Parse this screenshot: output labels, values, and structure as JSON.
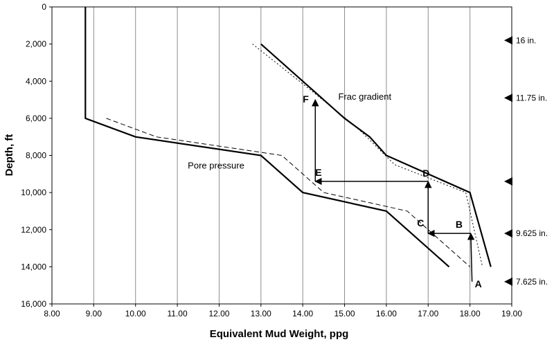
{
  "chart_data": {
    "type": "line",
    "xlabel": "Equivalent Mud Weight, ppg",
    "ylabel": "Depth, ft",
    "xlim": [
      8.0,
      19.0
    ],
    "ylim": [
      0,
      16000
    ],
    "y_inverted": true,
    "grid": "vertical",
    "x_ticks": [
      "8.00",
      "9.00",
      "10.00",
      "11.00",
      "12.00",
      "13.00",
      "14.00",
      "15.00",
      "16.00",
      "17.00",
      "18.00",
      "19.00"
    ],
    "y_ticks": [
      "0",
      "2,000",
      "4,000",
      "6,000",
      "8,000",
      "10,000",
      "12,000",
      "14,000",
      "16,000"
    ],
    "series": [
      {
        "name": "Pore pressure",
        "style": "solid",
        "x": [
          8.8,
          8.8,
          10.0,
          13.0,
          14.0,
          16.0,
          17.5
        ],
        "y": [
          0,
          6000,
          7000,
          8000,
          10000,
          11000,
          14000
        ]
      },
      {
        "name": "Frac gradient",
        "style": "solid",
        "x": [
          13.0,
          14.0,
          15.0,
          15.6,
          16.0,
          18.0,
          18.5
        ],
        "y": [
          2000,
          4000,
          6000,
          7000,
          8000,
          10000,
          14000
        ]
      },
      {
        "name": "",
        "style": "dashed",
        "x": [
          9.3,
          10.5,
          13.5,
          14.5,
          16.5,
          18.0
        ],
        "y": [
          6000,
          7000,
          8000,
          10000,
          11000,
          14000
        ]
      },
      {
        "name": "",
        "style": "dotted",
        "x": [
          12.8,
          14.2,
          15.3,
          16.2,
          17.9,
          18.3
        ],
        "y": [
          2000,
          4500,
          6500,
          8500,
          10000,
          14000
        ]
      }
    ],
    "annotations": [
      {
        "text": "Frac gradient",
        "x": 14.85,
        "y": 5000
      },
      {
        "text": "Pore pressure",
        "x": 11.25,
        "y": 8700
      }
    ],
    "design_points": [
      {
        "label": "A",
        "x": 18.05,
        "y": 14800
      },
      {
        "label": "B",
        "x": 18.02,
        "y": 12200
      },
      {
        "label": "C",
        "x": 17.0,
        "y": 12200
      },
      {
        "label": "D",
        "x": 17.0,
        "y": 9400
      },
      {
        "label": "E",
        "x": 14.3,
        "y": 9400
      },
      {
        "label": "F",
        "x": 14.3,
        "y": 5000
      }
    ],
    "casing_points": [
      {
        "label": "16 in.",
        "depth": 1800
      },
      {
        "label": "11.75 in.",
        "depth": 4900
      },
      {
        "label": "",
        "depth": 9400
      },
      {
        "label": "9.625 in.",
        "depth": 12200
      },
      {
        "label": "7.625 in.",
        "depth": 14800
      }
    ]
  }
}
